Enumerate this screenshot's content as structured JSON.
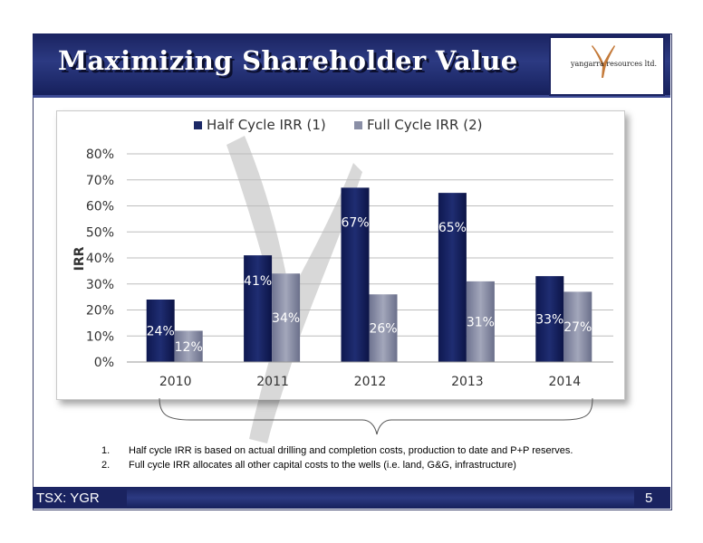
{
  "slide": {
    "title": "Maximizing Shareholder Value",
    "logo_text": "yangarra resources ltd.",
    "footer_label": "TSX: YGR",
    "page_number": "5"
  },
  "notes": [
    {
      "num": "1.",
      "text": "Half cycle IRR is based on actual drilling and completion costs, production to date and P+P reserves."
    },
    {
      "num": "2.",
      "text": "Full cycle IRR allocates all other capital costs to the wells (i.e. land, G&G, infrastructure)"
    }
  ],
  "colors": {
    "header": "#1a2360",
    "half_cycle": "#1b2866",
    "full_cycle": "#8a8fa6"
  },
  "chart_data": {
    "type": "bar",
    "title": "",
    "categories": [
      "2010",
      "2011",
      "2012",
      "2013",
      "2014"
    ],
    "series": [
      {
        "name": "Half Cycle IRR (1)",
        "values": [
          24,
          41,
          67,
          65,
          33
        ],
        "labels": [
          "24%",
          "41%",
          "67%",
          "65%",
          "33%"
        ]
      },
      {
        "name": "Full Cycle IRR (2)",
        "values": [
          12,
          34,
          26,
          31,
          27
        ],
        "labels": [
          "12%",
          "34%",
          "26%",
          "31%",
          "27%"
        ]
      }
    ],
    "xlabel": "",
    "ylabel": "IRR",
    "ylim": [
      0,
      80
    ],
    "yticks": [
      "0%",
      "10%",
      "20%",
      "30%",
      "40%",
      "50%",
      "60%",
      "70%",
      "80%"
    ],
    "grid": true,
    "legend_position": "top"
  }
}
